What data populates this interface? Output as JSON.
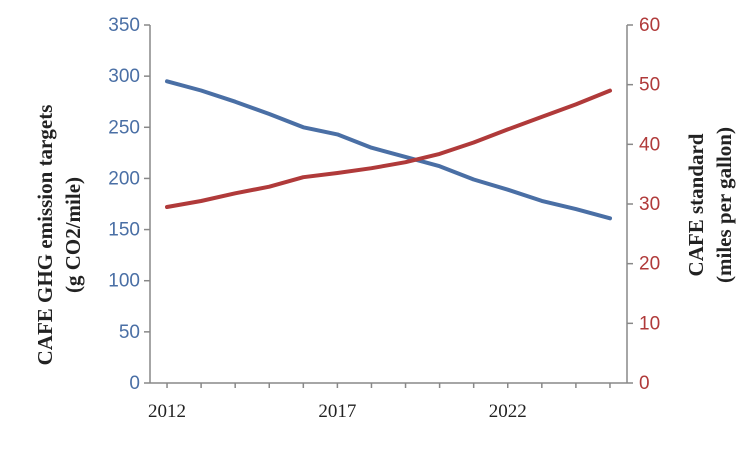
{
  "chart_data": {
    "type": "line",
    "title": "",
    "x": [
      2012,
      2013,
      2014,
      2015,
      2016,
      2017,
      2018,
      2019,
      2020,
      2021,
      2022,
      2023,
      2024,
      2025
    ],
    "xlim": [
      2011.5,
      2025.5
    ],
    "xticks": [
      "2012",
      "2017",
      "2022"
    ],
    "xlabel": "",
    "y_left": {
      "label_line1": "CAFE GHG emission targets",
      "label_line2": "(g CO2/mile)",
      "ylim": [
        0,
        350
      ],
      "ticks": [
        "0",
        "50",
        "100",
        "150",
        "200",
        "250",
        "300",
        "350"
      ],
      "color": "#4a6fa5"
    },
    "y_right": {
      "label_line1": "CAFE standard",
      "label_line2": "(miles per gallon)",
      "ylim": [
        0,
        60
      ],
      "ticks": [
        "0",
        "10",
        "20",
        "30",
        "40",
        "50",
        "60"
      ],
      "color": "#b03a3a"
    },
    "series": [
      {
        "axis": "left",
        "color": "#4a6fa5",
        "values": [
          295,
          286,
          275,
          263,
          250,
          243,
          230,
          221,
          212,
          199,
          189,
          178,
          170,
          161
        ]
      },
      {
        "axis": "right",
        "color": "#b03a3a",
        "values": [
          29.5,
          30.5,
          31.8,
          32.9,
          34.5,
          35.2,
          36.0,
          37.0,
          38.4,
          40.3,
          42.5,
          44.6,
          46.7,
          49.0
        ]
      }
    ],
    "grid": false,
    "legend": "none"
  }
}
